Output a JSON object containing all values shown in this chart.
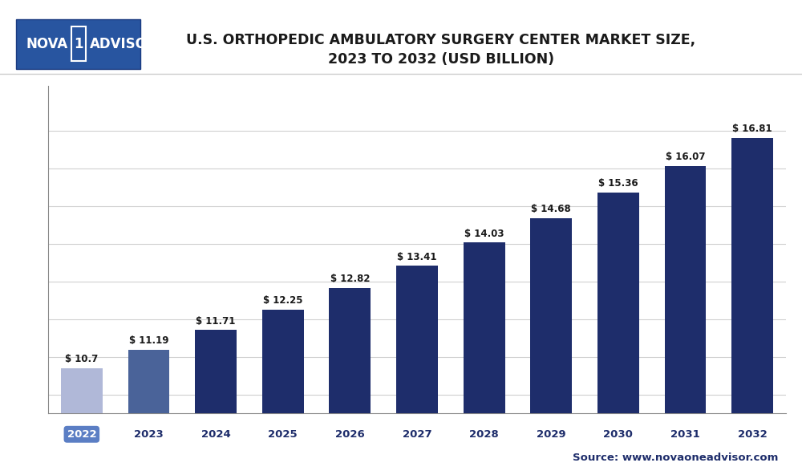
{
  "title_line1": "U.S. ORTHOPEDIC AMBULATORY SURGERY CENTER MARKET SIZE,",
  "title_line2": "2023 TO 2032 (USD BILLION)",
  "years": [
    "2022",
    "2023",
    "2024",
    "2025",
    "2026",
    "2027",
    "2028",
    "2029",
    "2030",
    "2031",
    "2032"
  ],
  "values": [
    10.7,
    11.19,
    11.71,
    12.25,
    12.82,
    13.41,
    14.03,
    14.68,
    15.36,
    16.07,
    16.81
  ],
  "labels": [
    "$ 10.7",
    "$ 11.19",
    "$ 11.71",
    "$ 12.25",
    "$ 12.82",
    "$ 13.41",
    "$ 14.03",
    "$ 14.68",
    "$ 15.36",
    "$ 16.07",
    "$ 16.81"
  ],
  "bar_colors": [
    "#b0b8d8",
    "#1e2d6b",
    "#1e2d6b",
    "#1e2d6b",
    "#1e2d6b",
    "#1e2d6b",
    "#1e2d6b",
    "#1e2d6b",
    "#1e2d6b",
    "#1e2d6b",
    "#1e2d6b"
  ],
  "year_2023_color": "#4a6399",
  "ylim": [
    9.5,
    18.2
  ],
  "source_text": "Source: www.novaoneadvisor.com",
  "bg_color": "#ffffff",
  "plot_bg_color": "#ffffff",
  "grid_color": "#d0d0d0",
  "title_color": "#1a1a1a",
  "bar_label_color": "#1a1a1a",
  "logo_bg": "#2855a0",
  "logo_border": "#1a3a80",
  "year_box_color": "#5b7ec4",
  "year_other_color": "#1e2d6b",
  "separator_color": "#cccccc"
}
